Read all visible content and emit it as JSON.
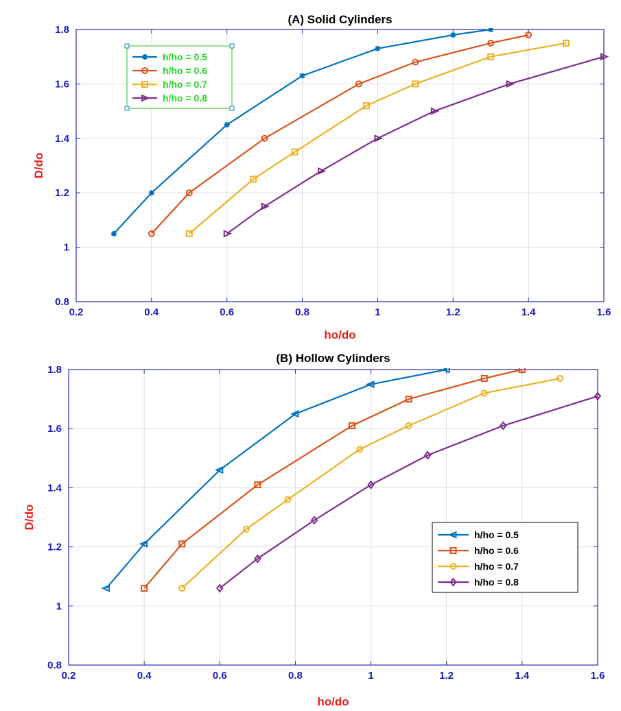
{
  "chart_data": [
    {
      "type": "line",
      "title": "(A) Solid Cylinders",
      "xlabel": "ho/do",
      "ylabel": "D/do",
      "xlim": [
        0.2,
        1.6
      ],
      "ylim": [
        0.8,
        1.8
      ],
      "xticks": [
        "0.2",
        "0.4",
        "0.6",
        "0.8",
        "1",
        "1.2",
        "1.4",
        "1.6"
      ],
      "yticks": [
        "0.8",
        "1",
        "1.2",
        "1.4",
        "1.6",
        "1.8"
      ],
      "grid": true,
      "legend_position": "top-left",
      "legend_style": "selected-box-green-text",
      "series": [
        {
          "name": "h/ho = 0.5",
          "color": "#0072BD",
          "marker": "asterisk",
          "x": [
            0.3,
            0.4,
            0.6,
            0.8,
            1.0,
            1.2,
            1.3
          ],
          "y": [
            1.05,
            1.2,
            1.45,
            1.63,
            1.73,
            1.78,
            1.8
          ]
        },
        {
          "name": "h/ho = 0.6",
          "color": "#D95319",
          "marker": "circle",
          "x": [
            0.4,
            0.5,
            0.7,
            0.95,
            1.1,
            1.3,
            1.4
          ],
          "y": [
            1.05,
            1.2,
            1.4,
            1.6,
            1.68,
            1.75,
            1.78
          ]
        },
        {
          "name": "h/ho = 0.7",
          "color": "#EDB120",
          "marker": "square",
          "x": [
            0.5,
            0.67,
            0.78,
            0.97,
            1.1,
            1.3,
            1.5
          ],
          "y": [
            1.05,
            1.25,
            1.35,
            1.52,
            1.6,
            1.7,
            1.75
          ]
        },
        {
          "name": "h/ho = 0.8",
          "color": "#7E2F8E",
          "marker": "triangle-right",
          "x": [
            0.6,
            0.7,
            0.85,
            1.0,
            1.15,
            1.35,
            1.6
          ],
          "y": [
            1.05,
            1.15,
            1.28,
            1.4,
            1.5,
            1.6,
            1.7
          ]
        }
      ]
    },
    {
      "type": "line",
      "title": "(B) Hollow Cylinders",
      "xlabel": "ho/do",
      "ylabel": "D/do",
      "xlim": [
        0.2,
        1.6
      ],
      "ylim": [
        0.8,
        1.8
      ],
      "xticks": [
        "0.2",
        "0.4",
        "0.6",
        "0.8",
        "1",
        "1.2",
        "1.4",
        "1.6"
      ],
      "yticks": [
        "0.8",
        "1",
        "1.2",
        "1.4",
        "1.6",
        "1.8"
      ],
      "grid": true,
      "legend_position": "right",
      "legend_style": "boxed",
      "series": [
        {
          "name": "h/ho = 0.5",
          "color": "#0072BD",
          "marker": "triangle-left",
          "x": [
            0.3,
            0.4,
            0.6,
            0.8,
            1.0,
            1.2
          ],
          "y": [
            1.06,
            1.21,
            1.46,
            1.65,
            1.75,
            1.8
          ]
        },
        {
          "name": "h/ho = 0.6",
          "color": "#D95319",
          "marker": "square",
          "x": [
            0.4,
            0.5,
            0.7,
            0.95,
            1.1,
            1.3,
            1.4
          ],
          "y": [
            1.06,
            1.21,
            1.41,
            1.61,
            1.7,
            1.77,
            1.8
          ]
        },
        {
          "name": "h/ho = 0.7",
          "color": "#EDB120",
          "marker": "circle",
          "x": [
            0.5,
            0.67,
            0.78,
            0.97,
            1.1,
            1.3,
            1.5
          ],
          "y": [
            1.06,
            1.26,
            1.36,
            1.53,
            1.61,
            1.72,
            1.77
          ]
        },
        {
          "name": "h/ho = 0.8",
          "color": "#7E2F8E",
          "marker": "diamond",
          "x": [
            0.6,
            0.7,
            0.85,
            1.0,
            1.15,
            1.35,
            1.6
          ],
          "y": [
            1.06,
            1.16,
            1.29,
            1.41,
            1.51,
            1.61,
            1.71
          ]
        }
      ]
    }
  ]
}
